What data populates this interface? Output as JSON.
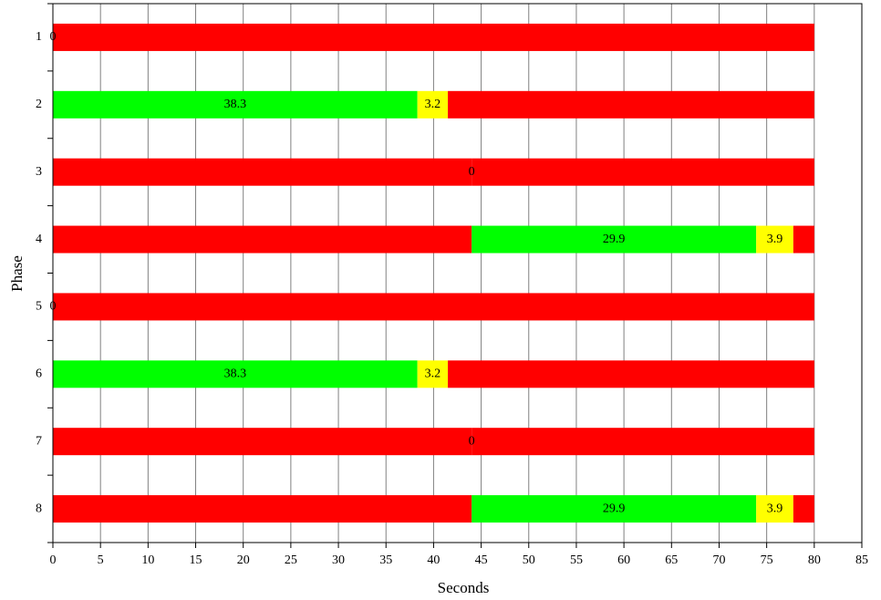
{
  "chart_data": {
    "type": "stacked_bar_horizontal",
    "x_label": "Seconds",
    "y_label": "Phase",
    "categories": [
      "1",
      "2",
      "3",
      "4",
      "5",
      "6",
      "7",
      "8"
    ],
    "series": [
      {
        "color": "#ff0000",
        "show_labels": false,
        "values": [
          null,
          null,
          44,
          44,
          null,
          null,
          44,
          44
        ]
      },
      {
        "color": "#00ff00",
        "show_labels": true,
        "values": [
          0,
          38.3,
          0,
          29.9,
          0,
          38.3,
          0,
          29.9
        ]
      },
      {
        "color": "#ffff00",
        "show_labels": true,
        "values": [
          null,
          3.2,
          null,
          3.9,
          null,
          3.2,
          null,
          3.9
        ]
      },
      {
        "color": "#ff0000",
        "show_labels": false,
        "values": [
          80,
          38.5,
          36,
          2.2,
          80,
          38.5,
          36,
          2.2
        ]
      }
    ],
    "xlim": [
      0,
      85
    ],
    "xticks": [
      0,
      5,
      10,
      15,
      20,
      25,
      30,
      35,
      40,
      45,
      50,
      55,
      60,
      65,
      70,
      75,
      80,
      85
    ],
    "grid": true
  }
}
